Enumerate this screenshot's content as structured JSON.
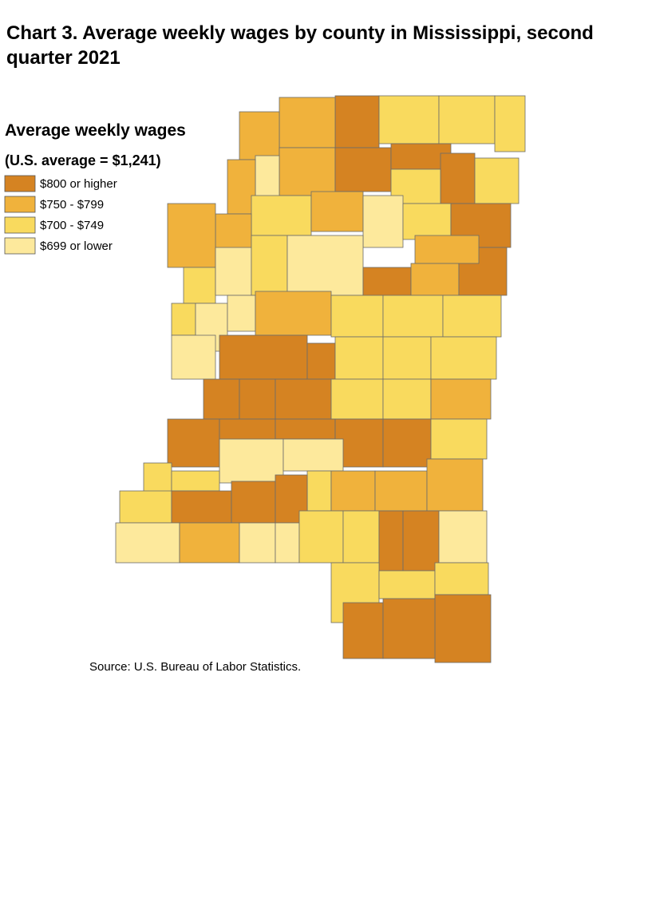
{
  "title": "Chart 3. Average weekly wages by county in Mississippi, second quarter 2021",
  "legend": {
    "title": "Average weekly wages",
    "subtitle": "(U.S. average = $1,241)",
    "items": [
      {
        "label": "$800 or higher",
        "color": "#d58322"
      },
      {
        "label": "$750 - $799",
        "color": "#f0b23c"
      },
      {
        "label": "$700 - $749",
        "color": "#f9da5e"
      },
      {
        "label": "$699 or lower",
        "color": "#fde99c"
      }
    ]
  },
  "source": "Source: U.S. Bureau of Labor Statistics."
}
